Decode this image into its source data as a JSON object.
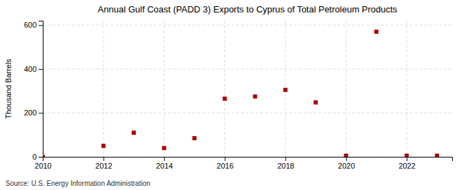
{
  "chart_data": {
    "type": "scatter",
    "title": "Annual Gulf Coast (PADD 3) Exports to Cyprus of Total Petroleum Products",
    "ylabel": "Thousand Barrels",
    "annotations": [
      "Source: U.S. Energy Information Administration"
    ],
    "x": [
      2010,
      2012,
      2013,
      2014,
      2015,
      2016,
      2017,
      2018,
      2019,
      2020,
      2021,
      2022,
      2023
    ],
    "values": [
      0,
      50,
      110,
      40,
      85,
      265,
      275,
      305,
      248,
      5,
      570,
      5,
      5
    ],
    "color": "#aa0000",
    "marker": "square",
    "xlim": [
      2010,
      2023.5
    ],
    "xticks": [
      2010,
      2012,
      2014,
      2016,
      2018,
      2020,
      2022
    ],
    "ylim": [
      0,
      620
    ],
    "yticks": [
      0,
      200,
      400,
      600
    ],
    "grid": true
  }
}
